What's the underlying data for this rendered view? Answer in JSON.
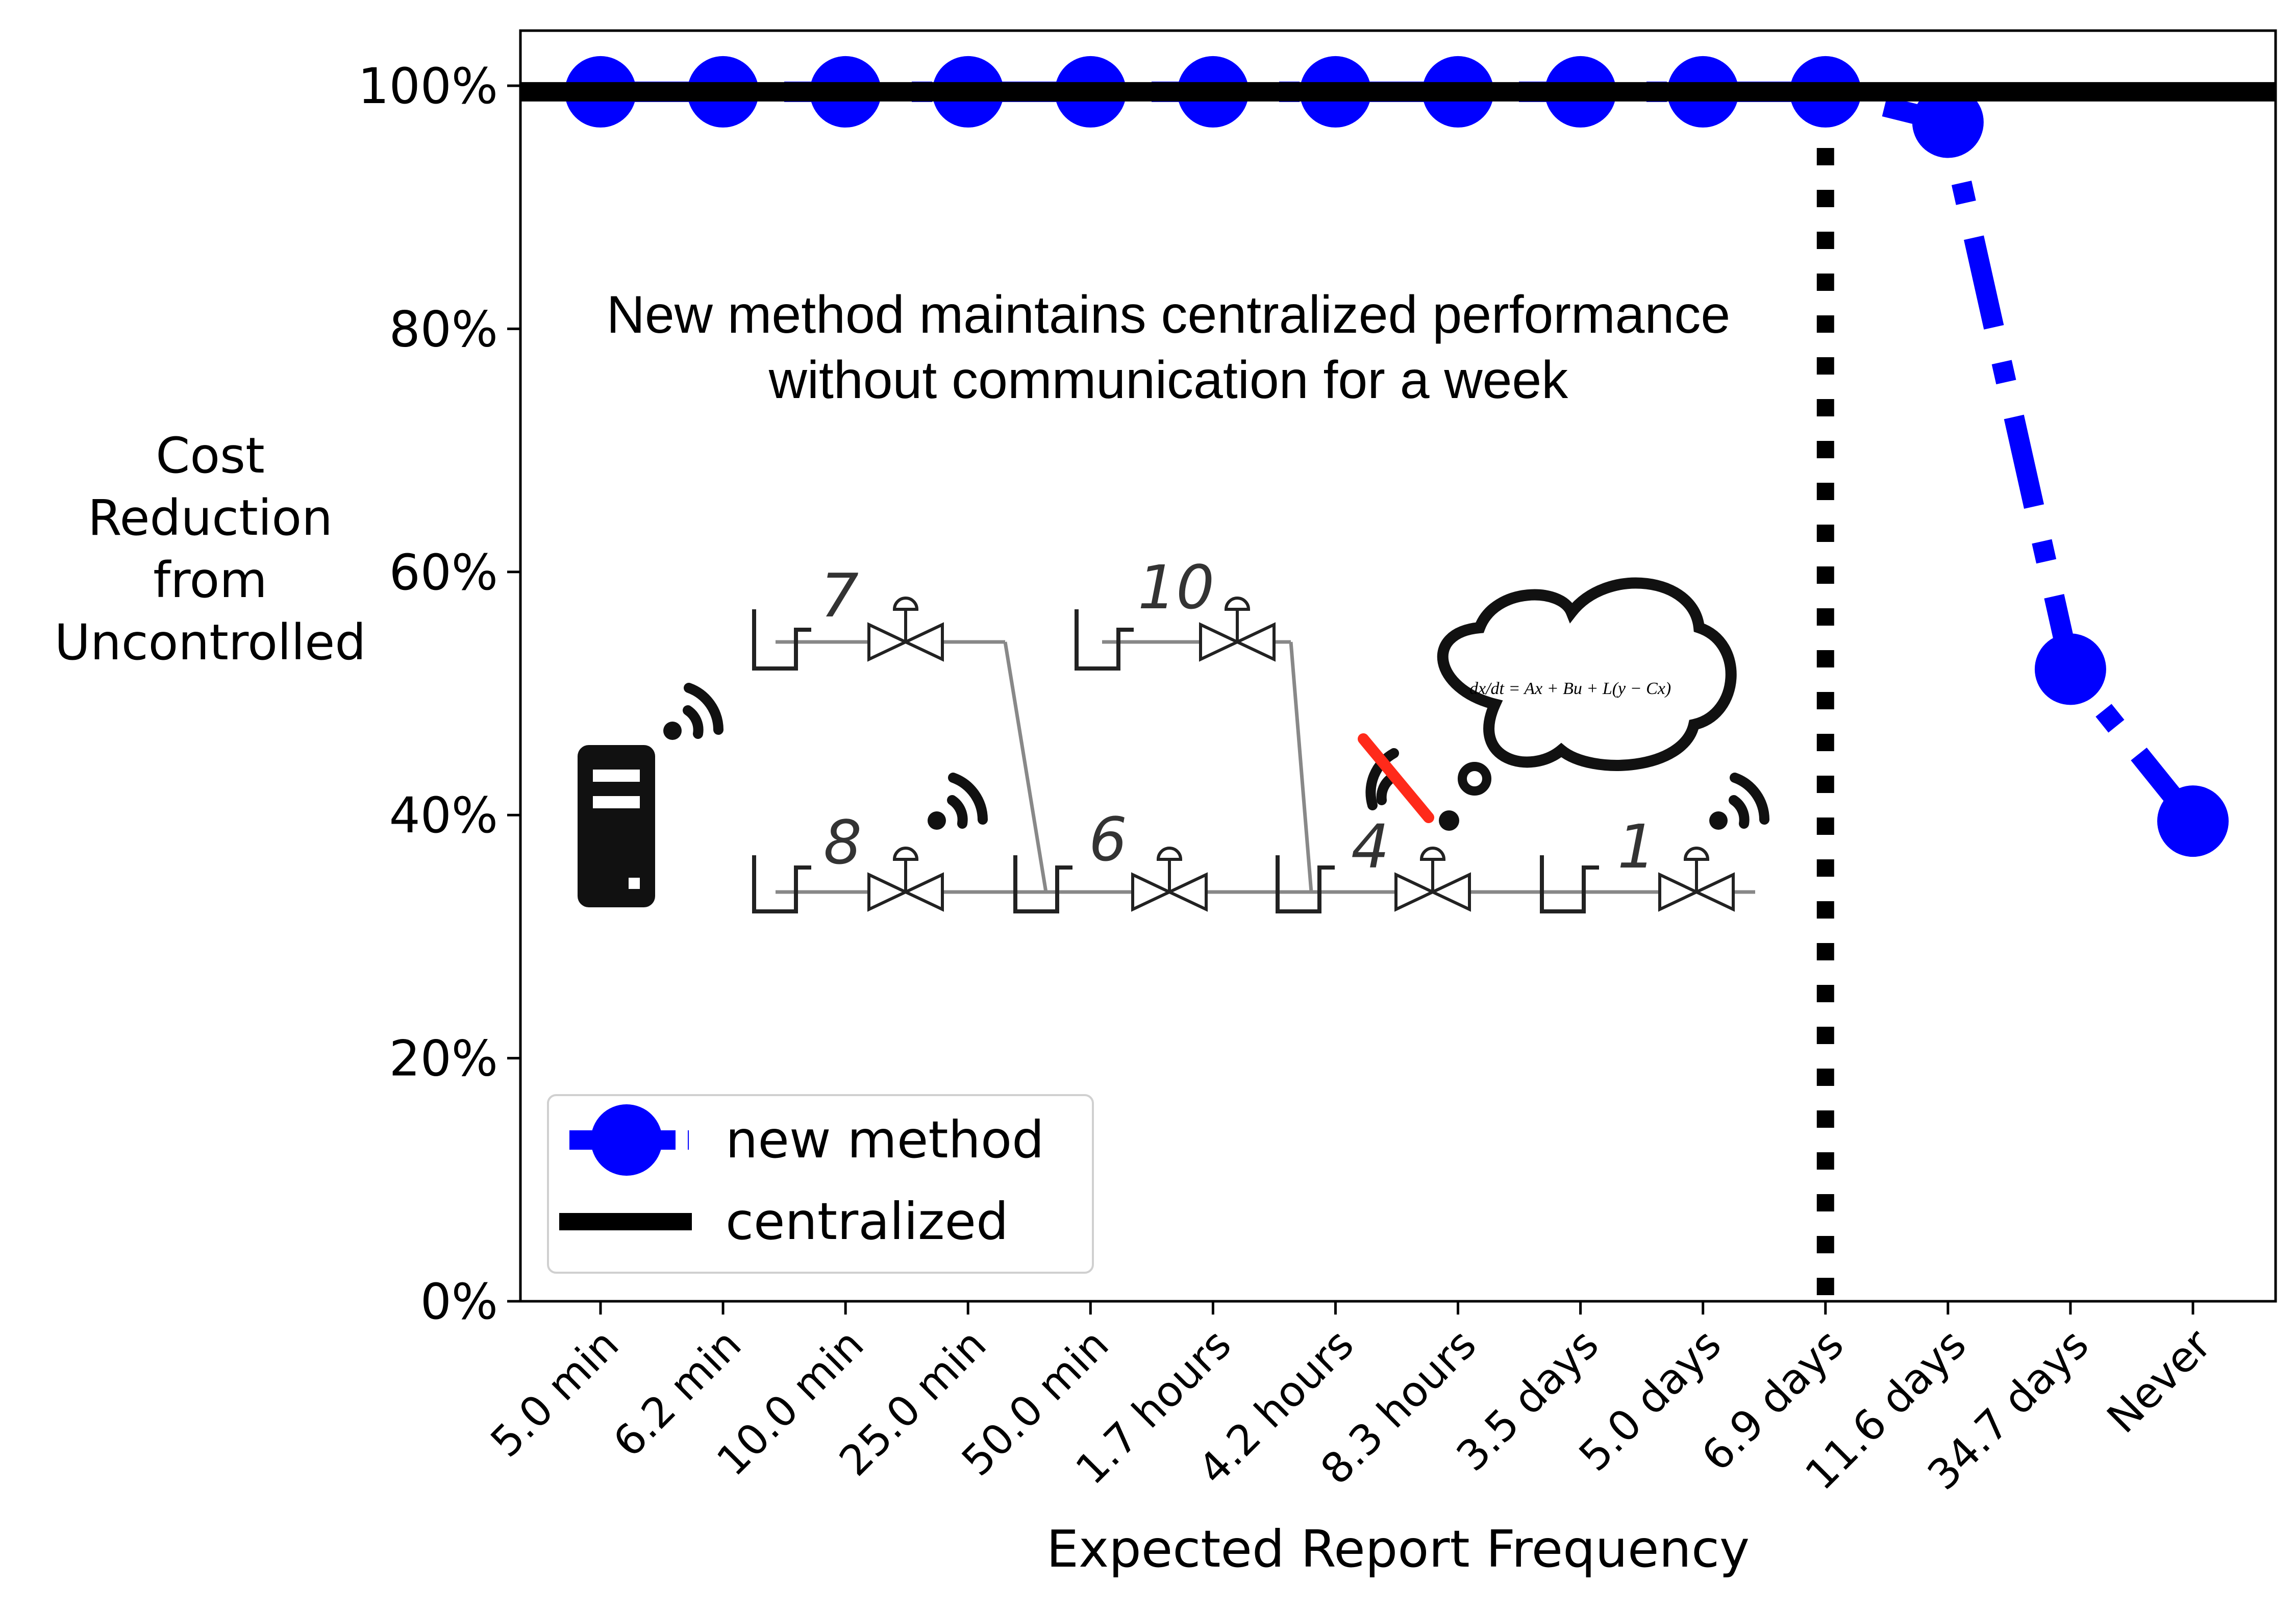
{
  "chart_data": {
    "type": "line",
    "xlabel": "Expected Report Frequency",
    "ylabel": [
      "Cost",
      "Reduction",
      "from",
      "Uncontrolled"
    ],
    "categories": [
      "5.0 min",
      "6.2 min",
      "10.0 min",
      "25.0 min",
      "50.0 min",
      "1.7 hours",
      "4.2 hours",
      "8.3 hours",
      "3.5 days",
      "5.0 days",
      "6.9 days",
      "11.6 days",
      "34.7 days",
      "Never"
    ],
    "ylim": [
      0,
      100
    ],
    "yticks": [
      0,
      20,
      40,
      60,
      80,
      100
    ],
    "ytick_labels": [
      "0%",
      "20%",
      "40%",
      "60%",
      "80%",
      "100%"
    ],
    "series": [
      {
        "name": "new method",
        "color": "#0000ff",
        "values": [
          99.5,
          99.5,
          99.5,
          99.5,
          99.5,
          99.5,
          99.5,
          99.5,
          99.5,
          99.5,
          99.5,
          97,
          52,
          39.5
        ]
      },
      {
        "name": "centralized",
        "color": "#000000",
        "constant": 99.5
      }
    ],
    "vline": {
      "category_index": 10,
      "style": "dotted",
      "color": "#000000"
    },
    "annotation": [
      "New method maintains centralized performance",
      "without communication for a week"
    ],
    "legend": {
      "placement": "lower-left",
      "items": [
        "new method",
        "centralized"
      ]
    },
    "inset": {
      "node_labels": [
        "7",
        "10",
        "8",
        "6",
        "4",
        "1"
      ],
      "equation": "dx/dt = Ax + Bu + L(y − Cx)"
    }
  }
}
